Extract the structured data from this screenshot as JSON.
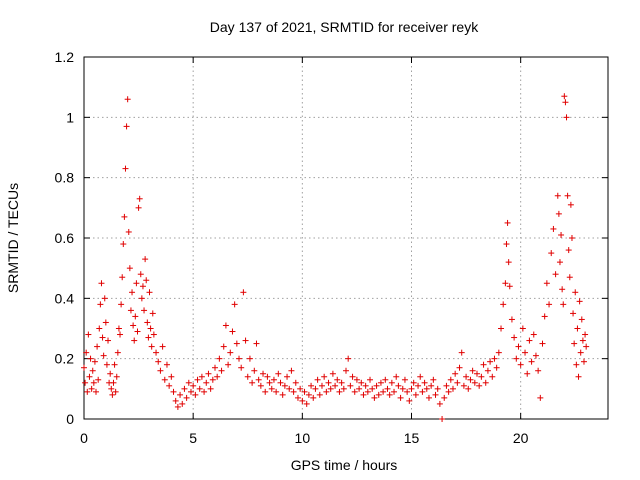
{
  "chart_data": {
    "type": "scatter",
    "title": "Day 137 of 2021, SRMTID for receiver reyk",
    "xlabel": "GPS time / hours",
    "ylabel": "SRMTID / TECUs",
    "xlim": [
      0,
      24
    ],
    "ylim": [
      0,
      1.2
    ],
    "xticks": [
      0,
      5,
      10,
      15,
      20
    ],
    "xtick_labels": [
      "0",
      "5",
      "10",
      "15",
      "20"
    ],
    "yticks": [
      0,
      0.2,
      0.4,
      0.6,
      0.8,
      1.0,
      1.2
    ],
    "ytick_labels": [
      "0",
      "0.2",
      "0.4",
      "0.6",
      "0.8",
      "1",
      "1.2"
    ],
    "grid": true,
    "marker": "+",
    "color": "#e00000",
    "series": [
      {
        "name": "SRMTID",
        "points": [
          [
            0.0,
            0.17
          ],
          [
            0.05,
            0.12
          ],
          [
            0.1,
            0.22
          ],
          [
            0.15,
            0.09
          ],
          [
            0.2,
            0.28
          ],
          [
            0.25,
            0.14
          ],
          [
            0.3,
            0.2
          ],
          [
            0.35,
            0.1
          ],
          [
            0.4,
            0.16
          ],
          [
            0.45,
            0.12
          ],
          [
            0.5,
            0.19
          ],
          [
            0.55,
            0.09
          ],
          [
            0.6,
            0.24
          ],
          [
            0.65,
            0.13
          ],
          [
            0.7,
            0.3
          ],
          [
            0.75,
            0.38
          ],
          [
            0.8,
            0.45
          ],
          [
            0.85,
            0.27
          ],
          [
            0.9,
            0.21
          ],
          [
            0.95,
            0.4
          ],
          [
            1.0,
            0.32
          ],
          [
            1.05,
            0.18
          ],
          [
            1.1,
            0.26
          ],
          [
            1.15,
            0.12
          ],
          [
            1.2,
            0.15
          ],
          [
            1.25,
            0.1
          ],
          [
            1.3,
            0.08
          ],
          [
            1.35,
            0.12
          ],
          [
            1.4,
            0.18
          ],
          [
            1.45,
            0.09
          ],
          [
            1.5,
            0.14
          ],
          [
            1.55,
            0.22
          ],
          [
            1.6,
            0.3
          ],
          [
            1.65,
            0.28
          ],
          [
            1.7,
            0.38
          ],
          [
            1.75,
            0.47
          ],
          [
            1.8,
            0.58
          ],
          [
            1.85,
            0.67
          ],
          [
            1.9,
            0.83
          ],
          [
            1.95,
            0.97
          ],
          [
            2.0,
            1.06
          ],
          [
            2.05,
            0.62
          ],
          [
            2.1,
            0.5
          ],
          [
            2.15,
            0.36
          ],
          [
            2.2,
            0.42
          ],
          [
            2.25,
            0.31
          ],
          [
            2.3,
            0.26
          ],
          [
            2.35,
            0.34
          ],
          [
            2.4,
            0.45
          ],
          [
            2.45,
            0.29
          ],
          [
            2.5,
            0.7
          ],
          [
            2.55,
            0.73
          ],
          [
            2.6,
            0.48
          ],
          [
            2.65,
            0.4
          ],
          [
            2.7,
            0.44
          ],
          [
            2.75,
            0.36
          ],
          [
            2.8,
            0.53
          ],
          [
            2.85,
            0.46
          ],
          [
            2.9,
            0.32
          ],
          [
            2.95,
            0.27
          ],
          [
            3.0,
            0.42
          ],
          [
            3.05,
            0.3
          ],
          [
            3.1,
            0.24
          ],
          [
            3.15,
            0.35
          ],
          [
            3.2,
            0.28
          ],
          [
            3.3,
            0.22
          ],
          [
            3.4,
            0.19
          ],
          [
            3.5,
            0.16
          ],
          [
            3.6,
            0.24
          ],
          [
            3.7,
            0.13
          ],
          [
            3.8,
            0.18
          ],
          [
            3.9,
            0.11
          ],
          [
            4.0,
            0.14
          ],
          [
            4.1,
            0.09
          ],
          [
            4.2,
            0.06
          ],
          [
            4.3,
            0.04
          ],
          [
            4.4,
            0.08
          ],
          [
            4.5,
            0.05
          ],
          [
            4.6,
            0.1
          ],
          [
            4.7,
            0.07
          ],
          [
            4.8,
            0.12
          ],
          [
            4.9,
            0.09
          ],
          [
            5.0,
            0.11
          ],
          [
            5.1,
            0.08
          ],
          [
            5.2,
            0.13
          ],
          [
            5.3,
            0.1
          ],
          [
            5.4,
            0.14
          ],
          [
            5.5,
            0.09
          ],
          [
            5.6,
            0.12
          ],
          [
            5.7,
            0.15
          ],
          [
            5.8,
            0.1
          ],
          [
            5.9,
            0.13
          ],
          [
            6.0,
            0.17
          ],
          [
            6.1,
            0.14
          ],
          [
            6.2,
            0.2
          ],
          [
            6.3,
            0.16
          ],
          [
            6.4,
            0.24
          ],
          [
            6.5,
            0.31
          ],
          [
            6.6,
            0.18
          ],
          [
            6.7,
            0.22
          ],
          [
            6.8,
            0.29
          ],
          [
            6.9,
            0.38
          ],
          [
            7.0,
            0.25
          ],
          [
            7.1,
            0.2
          ],
          [
            7.2,
            0.17
          ],
          [
            7.3,
            0.42
          ],
          [
            7.4,
            0.26
          ],
          [
            7.5,
            0.14
          ],
          [
            7.6,
            0.2
          ],
          [
            7.7,
            0.12
          ],
          [
            7.8,
            0.16
          ],
          [
            7.9,
            0.25
          ],
          [
            8.0,
            0.13
          ],
          [
            8.1,
            0.11
          ],
          [
            8.2,
            0.15
          ],
          [
            8.3,
            0.09
          ],
          [
            8.4,
            0.14
          ],
          [
            8.5,
            0.12
          ],
          [
            8.6,
            0.1
          ],
          [
            8.7,
            0.13
          ],
          [
            8.8,
            0.09
          ],
          [
            8.9,
            0.15
          ],
          [
            9.0,
            0.12
          ],
          [
            9.1,
            0.08
          ],
          [
            9.2,
            0.11
          ],
          [
            9.3,
            0.14
          ],
          [
            9.4,
            0.1
          ],
          [
            9.5,
            0.16
          ],
          [
            9.6,
            0.09
          ],
          [
            9.7,
            0.12
          ],
          [
            9.8,
            0.07
          ],
          [
            9.9,
            0.1
          ],
          [
            10.0,
            0.06
          ],
          [
            10.1,
            0.09
          ],
          [
            10.2,
            0.05
          ],
          [
            10.3,
            0.08
          ],
          [
            10.4,
            0.11
          ],
          [
            10.5,
            0.07
          ],
          [
            10.6,
            0.1
          ],
          [
            10.7,
            0.13
          ],
          [
            10.8,
            0.08
          ],
          [
            10.9,
            0.11
          ],
          [
            11.0,
            0.14
          ],
          [
            11.1,
            0.09
          ],
          [
            11.2,
            0.12
          ],
          [
            11.3,
            0.1
          ],
          [
            11.4,
            0.15
          ],
          [
            11.5,
            0.11
          ],
          [
            11.6,
            0.13
          ],
          [
            11.7,
            0.09
          ],
          [
            11.8,
            0.12
          ],
          [
            11.9,
            0.1
          ],
          [
            12.0,
            0.16
          ],
          [
            12.1,
            0.2
          ],
          [
            12.2,
            0.11
          ],
          [
            12.3,
            0.14
          ],
          [
            12.4,
            0.09
          ],
          [
            12.5,
            0.13
          ],
          [
            12.6,
            0.1
          ],
          [
            12.7,
            0.12
          ],
          [
            12.8,
            0.08
          ],
          [
            12.9,
            0.11
          ],
          [
            13.0,
            0.09
          ],
          [
            13.1,
            0.13
          ],
          [
            13.2,
            0.1
          ],
          [
            13.3,
            0.07
          ],
          [
            13.4,
            0.11
          ],
          [
            13.5,
            0.08
          ],
          [
            13.6,
            0.12
          ],
          [
            13.7,
            0.09
          ],
          [
            13.8,
            0.13
          ],
          [
            13.9,
            0.1
          ],
          [
            14.0,
            0.08
          ],
          [
            14.1,
            0.12
          ],
          [
            14.2,
            0.09
          ],
          [
            14.3,
            0.14
          ],
          [
            14.4,
            0.11
          ],
          [
            14.5,
            0.07
          ],
          [
            14.6,
            0.1
          ],
          [
            14.7,
            0.13
          ],
          [
            14.8,
            0.09
          ],
          [
            14.9,
            0.06
          ],
          [
            15.0,
            0.1
          ],
          [
            15.1,
            0.12
          ],
          [
            15.2,
            0.08
          ],
          [
            15.3,
            0.11
          ],
          [
            15.4,
            0.14
          ],
          [
            15.5,
            0.09
          ],
          [
            15.6,
            0.12
          ],
          [
            15.7,
            0.1
          ],
          [
            15.8,
            0.07
          ],
          [
            15.9,
            0.11
          ],
          [
            16.0,
            0.13
          ],
          [
            16.1,
            0.08
          ],
          [
            16.2,
            0.1
          ],
          [
            16.3,
            0.05
          ],
          [
            16.4,
            0.0
          ],
          [
            16.5,
            0.07
          ],
          [
            16.6,
            0.11
          ],
          [
            16.7,
            0.09
          ],
          [
            16.8,
            0.13
          ],
          [
            16.9,
            0.1
          ],
          [
            17.0,
            0.15
          ],
          [
            17.1,
            0.12
          ],
          [
            17.2,
            0.17
          ],
          [
            17.3,
            0.22
          ],
          [
            17.4,
            0.11
          ],
          [
            17.5,
            0.14
          ],
          [
            17.6,
            0.1
          ],
          [
            17.7,
            0.13
          ],
          [
            17.8,
            0.16
          ],
          [
            17.9,
            0.12
          ],
          [
            18.0,
            0.15
          ],
          [
            18.1,
            0.11
          ],
          [
            18.2,
            0.14
          ],
          [
            18.3,
            0.18
          ],
          [
            18.4,
            0.12
          ],
          [
            18.5,
            0.16
          ],
          [
            18.6,
            0.19
          ],
          [
            18.7,
            0.14
          ],
          [
            18.8,
            0.2
          ],
          [
            18.9,
            0.17
          ],
          [
            19.0,
            0.22
          ],
          [
            19.1,
            0.3
          ],
          [
            19.2,
            0.38
          ],
          [
            19.3,
            0.45
          ],
          [
            19.35,
            0.58
          ],
          [
            19.4,
            0.65
          ],
          [
            19.45,
            0.52
          ],
          [
            19.5,
            0.44
          ],
          [
            19.6,
            0.33
          ],
          [
            19.7,
            0.27
          ],
          [
            19.8,
            0.2
          ],
          [
            19.9,
            0.24
          ],
          [
            20.0,
            0.18
          ],
          [
            20.1,
            0.3
          ],
          [
            20.2,
            0.22
          ],
          [
            20.3,
            0.15
          ],
          [
            20.4,
            0.26
          ],
          [
            20.5,
            0.19
          ],
          [
            20.6,
            0.28
          ],
          [
            20.7,
            0.21
          ],
          [
            20.8,
            0.16
          ],
          [
            20.9,
            0.07
          ],
          [
            21.0,
            0.25
          ],
          [
            21.1,
            0.34
          ],
          [
            21.2,
            0.45
          ],
          [
            21.3,
            0.38
          ],
          [
            21.4,
            0.55
          ],
          [
            21.5,
            0.63
          ],
          [
            21.6,
            0.48
          ],
          [
            21.7,
            0.74
          ],
          [
            21.75,
            0.68
          ],
          [
            21.8,
            0.52
          ],
          [
            21.85,
            0.61
          ],
          [
            21.9,
            0.43
          ],
          [
            21.95,
            0.38
          ],
          [
            22.0,
            1.07
          ],
          [
            22.05,
            1.05
          ],
          [
            22.1,
            1.0
          ],
          [
            22.15,
            0.74
          ],
          [
            22.2,
            0.56
          ],
          [
            22.25,
            0.47
          ],
          [
            22.3,
            0.71
          ],
          [
            22.35,
            0.6
          ],
          [
            22.4,
            0.35
          ],
          [
            22.45,
            0.25
          ],
          [
            22.5,
            0.42
          ],
          [
            22.55,
            0.18
          ],
          [
            22.6,
            0.3
          ],
          [
            22.65,
            0.14
          ],
          [
            22.7,
            0.39
          ],
          [
            22.75,
            0.22
          ],
          [
            22.8,
            0.33
          ],
          [
            22.85,
            0.26
          ],
          [
            22.9,
            0.19
          ],
          [
            22.95,
            0.28
          ],
          [
            23.0,
            0.24
          ]
        ]
      }
    ]
  }
}
